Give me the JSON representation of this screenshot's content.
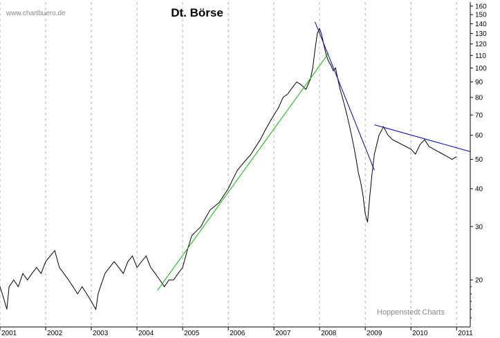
{
  "chart_data": {
    "type": "line",
    "title": "Dt. Börse",
    "watermark": "www.chartbuero.de",
    "source": "Hoppenstedt Charts",
    "yscale": "log",
    "ylim": [
      14,
      165
    ],
    "xlim": [
      2001.0,
      2011.3
    ],
    "grid": "dashed vertical at year boundaries",
    "y_ticks": [
      20,
      30,
      40,
      50,
      60,
      70,
      80,
      90,
      100,
      110,
      120,
      130,
      140,
      150,
      160
    ],
    "x_ticks": [
      "2001",
      "2002",
      "2003",
      "2004",
      "2005",
      "2006",
      "2007",
      "2008",
      "2009",
      "2010",
      "2011"
    ],
    "series": [
      {
        "color": "#000000",
        "x": [
          2001.0,
          2001.05,
          2001.1,
          2001.15,
          2001.2,
          2001.3,
          2001.4,
          2001.5,
          2001.6,
          2001.7,
          2001.8,
          2001.9,
          2002.0,
          2002.1,
          2002.2,
          2002.3,
          2002.4,
          2002.5,
          2002.6,
          2002.7,
          2002.8,
          2002.9,
          2003.0,
          2003.1,
          2003.15,
          2003.2,
          2003.3,
          2003.4,
          2003.5,
          2003.6,
          2003.7,
          2003.8,
          2003.9,
          2004.0,
          2004.1,
          2004.2,
          2004.3,
          2004.4,
          2004.5,
          2004.6,
          2004.7,
          2004.8,
          2004.9,
          2005.0,
          2005.1,
          2005.2,
          2005.3,
          2005.4,
          2005.5,
          2005.6,
          2005.7,
          2005.8,
          2005.9,
          2006.0,
          2006.1,
          2006.2,
          2006.3,
          2006.4,
          2006.5,
          2006.6,
          2006.7,
          2006.8,
          2006.9,
          2007.0,
          2007.1,
          2007.2,
          2007.3,
          2007.4,
          2007.5,
          2007.6,
          2007.7,
          2007.8,
          2007.85,
          2007.9,
          2007.95,
          2008.0,
          2008.05,
          2008.1,
          2008.15,
          2008.2,
          2008.25,
          2008.3,
          2008.35,
          2008.4,
          2008.45,
          2008.5,
          2008.55,
          2008.6,
          2008.65,
          2008.7,
          2008.75,
          2008.8,
          2008.85,
          2008.9,
          2008.95,
          2009.0,
          2009.05,
          2009.1,
          2009.15,
          2009.2,
          2009.3,
          2009.4,
          2009.5,
          2009.6,
          2009.7,
          2009.8,
          2009.9,
          2010.0,
          2010.1,
          2010.2,
          2010.3,
          2010.4,
          2010.5,
          2010.6,
          2010.7,
          2010.8,
          2010.9,
          2011.0
        ],
        "values": [
          19,
          18,
          17,
          16,
          19,
          20,
          19,
          21,
          20,
          21,
          22,
          21,
          23,
          24,
          25,
          22,
          21,
          20,
          19,
          18,
          19,
          18,
          17,
          16,
          18,
          19,
          21,
          22,
          23,
          22,
          21,
          23,
          24,
          22,
          23,
          24,
          22,
          21,
          20,
          19,
          20,
          20,
          21,
          22,
          25,
          28,
          29,
          30,
          32,
          34,
          35,
          36,
          38,
          40,
          43,
          46,
          48,
          50,
          52,
          55,
          58,
          62,
          66,
          70,
          74,
          80,
          82,
          86,
          90,
          88,
          85,
          92,
          100,
          115,
          130,
          135,
          128,
          118,
          110,
          105,
          102,
          98,
          100,
          92,
          85,
          80,
          75,
          70,
          65,
          60,
          55,
          50,
          45,
          42,
          38,
          33,
          31,
          38,
          45,
          52,
          60,
          64,
          60,
          58,
          57,
          56,
          55,
          54,
          52,
          56,
          58,
          55,
          54,
          53,
          52,
          51,
          50,
          51
        ]
      },
      {
        "color": "#00c000",
        "x": [
          2004.45,
          2008.2
        ],
        "values": [
          18.5,
          112
        ]
      },
      {
        "color": "#0000c8",
        "x": [
          2007.9,
          2009.2
        ],
        "values": [
          142,
          46
        ]
      },
      {
        "color": "#0000c8",
        "x": [
          2009.2,
          2011.3
        ],
        "values": [
          65,
          53
        ]
      }
    ]
  }
}
